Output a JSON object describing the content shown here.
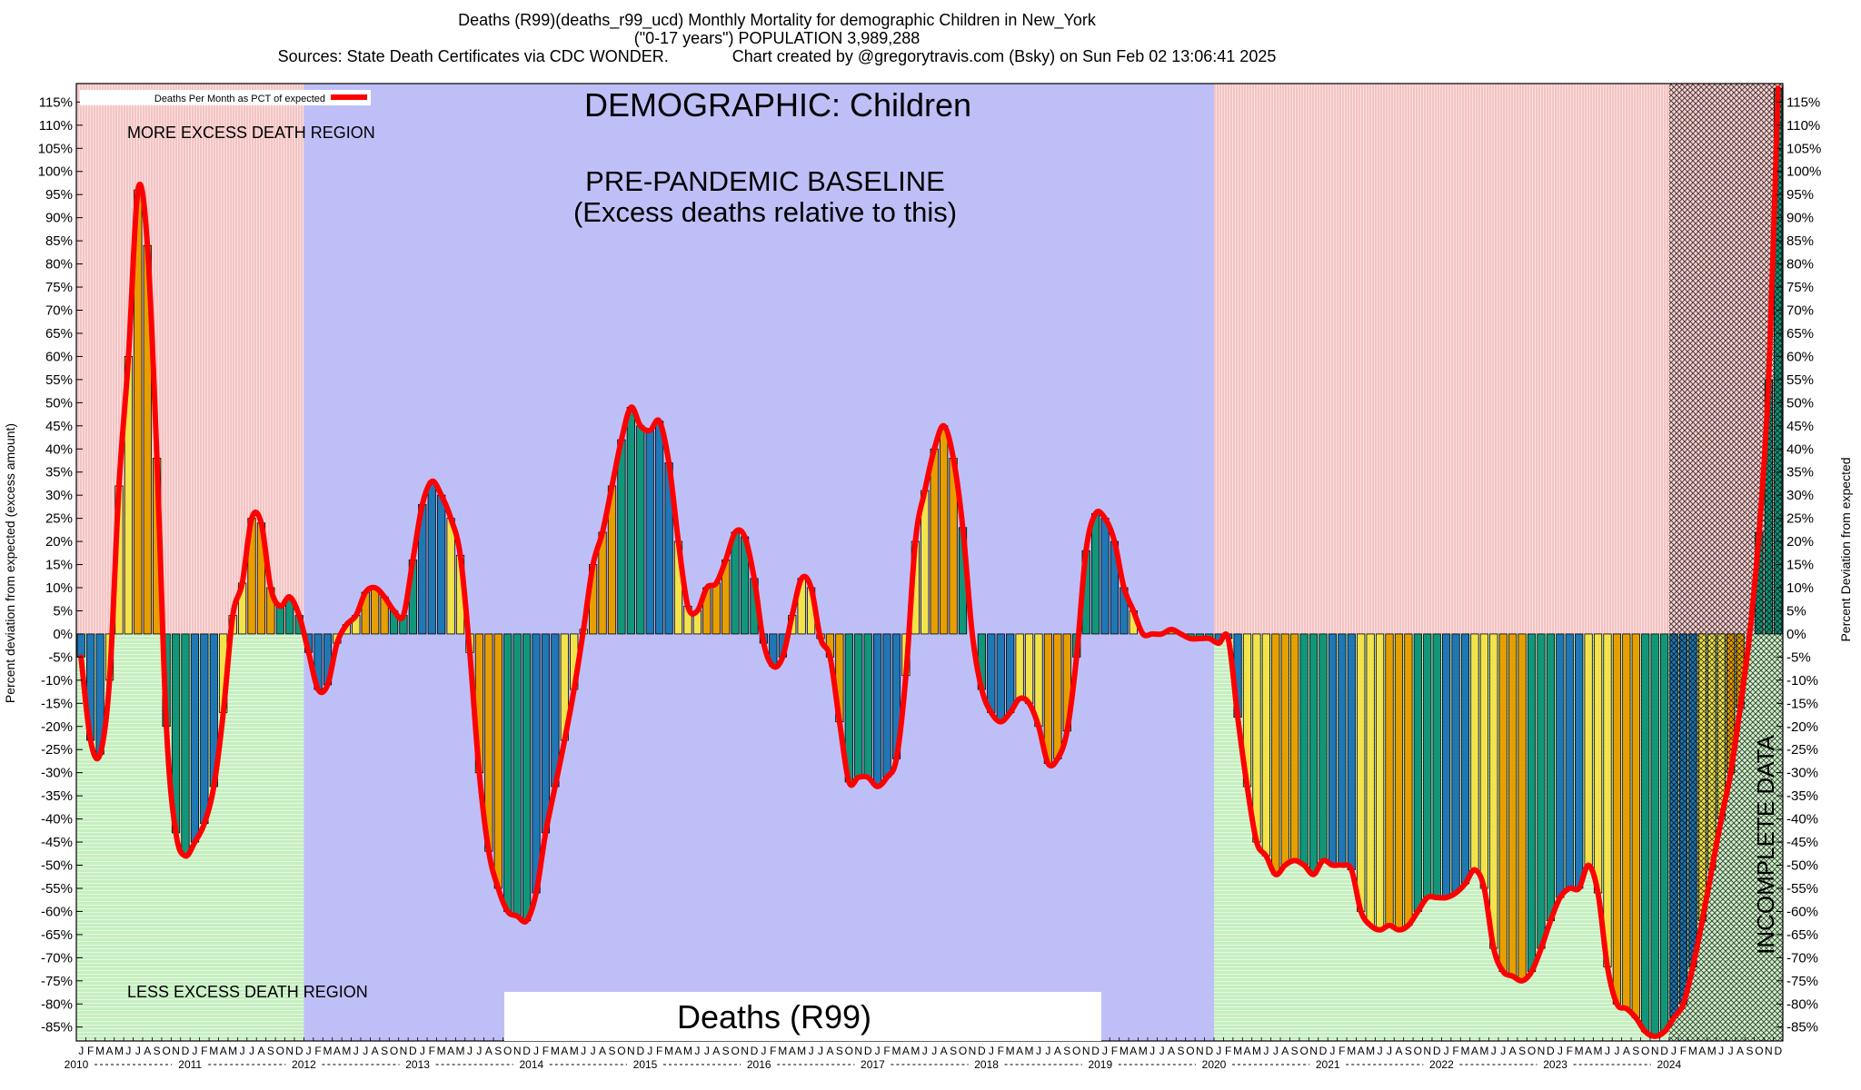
{
  "header": {
    "line1": "Deaths (R99)(deaths_r99_ucd) Monthly Mortality for demographic Children in New_York",
    "line2": "(\"0-17 years\") POPULATION 3,989,288",
    "line3": "Sources: State Death Certificates via CDC WONDER.              Chart created by @gregorytravis.com (Bsky) on Sun Feb 02 13:06:41 2025"
  },
  "labels": {
    "demographic": "DEMOGRAPHIC: Children",
    "baseline1": "PRE-PANDEMIC BASELINE",
    "baseline2": "(Excess deaths relative to this)",
    "more_excess": "MORE EXCESS DEATH REGION",
    "less_excess": "LESS EXCESS DEATH REGION",
    "incomplete": "INCOMPLETE DATA",
    "cause_box": "Deaths (R99)",
    "legend": "Deaths Per Month as PCT of expected"
  },
  "colors": {
    "red_region": "#f4c4c4",
    "green_region": "#c6efc0",
    "baseline_region": "#bfbff8",
    "line": "#ff0000",
    "bar_palette": [
      "#1f77b4",
      "#f2e34c",
      "#e69f00",
      "#12967a"
    ]
  },
  "chart_data": {
    "type": "bar",
    "title": "Deaths (R99)(deaths_r99_ucd) Monthly Mortality for demographic Children in New_York",
    "ylabel_left": "Percent deviation from expected (excess amount)",
    "ylabel_right": "Percent Deviation from expected",
    "ylim": [
      -88,
      119
    ],
    "y_ticks": [
      115,
      110,
      105,
      100,
      95,
      90,
      85,
      80,
      75,
      70,
      65,
      60,
      55,
      50,
      45,
      40,
      35,
      30,
      25,
      20,
      15,
      10,
      5,
      0,
      -5,
      -10,
      -15,
      -20,
      -25,
      -30,
      -35,
      -40,
      -45,
      -50,
      -55,
      -60,
      -65,
      -70,
      -75,
      -80,
      -85
    ],
    "y_tick_suffix": "%",
    "month_letters": [
      "J",
      "F",
      "M",
      "A",
      "M",
      "J",
      "J",
      "A",
      "S",
      "O",
      "N",
      "D"
    ],
    "years": [
      "2010",
      "2011",
      "2012",
      "2013",
      "2014",
      "2015",
      "2016",
      "2017",
      "2018",
      "2019",
      "2020",
      "2021",
      "2022",
      "2023",
      "2024"
    ],
    "start": "2010-01",
    "baseline_period": [
      "2012-01",
      "2019-12"
    ],
    "incomplete_period": [
      "2024-01",
      "2024-12"
    ],
    "series": [
      {
        "name": "Deaths Per Month as PCT of expected",
        "values": [
          -5,
          -23,
          -26,
          -10,
          32,
          60,
          96,
          84,
          38,
          -20,
          -43,
          -48,
          -45,
          -41,
          -33,
          -17,
          4,
          11,
          25,
          24,
          10,
          6,
          8,
          4,
          -4,
          -12,
          -11,
          -2,
          2,
          4,
          9,
          10,
          8,
          5,
          4,
          16,
          28,
          33,
          30,
          25,
          17,
          -4,
          -30,
          -47,
          -55,
          -60,
          -61,
          -62,
          -56,
          -43,
          -33,
          -23,
          -12,
          1,
          15,
          22,
          32,
          42,
          49,
          45,
          44,
          46,
          37,
          20,
          6,
          5,
          10,
          11,
          16,
          22,
          21,
          12,
          -2,
          -7,
          -5,
          4,
          12,
          10,
          -1,
          -5,
          -19,
          -32,
          -31,
          -31,
          -33,
          -31,
          -27,
          -9,
          20,
          31,
          40,
          45,
          38,
          23,
          0,
          -12,
          -17,
          -19,
          -17,
          -14,
          -15,
          -20,
          -28,
          -27,
          -21,
          -5,
          18,
          26,
          25,
          20,
          10,
          5,
          0,
          0,
          0,
          1,
          0,
          -1,
          -1,
          -1,
          -2,
          -1,
          -18,
          -33,
          -45,
          -48,
          -52,
          -50,
          -49,
          -50,
          -52,
          -49,
          -50,
          -50,
          -51,
          -60,
          -63,
          -64,
          -63,
          -64,
          -63,
          -60,
          -57,
          -57,
          -57,
          -56,
          -54,
          -51,
          -55,
          -68,
          -73,
          -74,
          -75,
          -73,
          -68,
          -62,
          -57,
          -55,
          -55,
          -50,
          -56,
          -72,
          -80,
          -81,
          -83,
          -86,
          -87,
          -86,
          -83,
          -80,
          -72,
          -62,
          -51,
          -40,
          -30,
          -16,
          0,
          22,
          55,
          118
        ]
      }
    ]
  }
}
